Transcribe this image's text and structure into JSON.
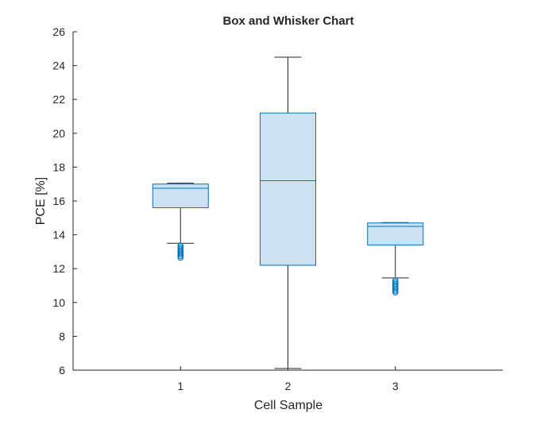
{
  "chart_data": {
    "type": "box",
    "title": "Box and Whisker Chart",
    "xlabel": "Cell Sample",
    "ylabel": "PCE [%]",
    "ylim": [
      6,
      26
    ],
    "yticks": [
      6,
      8,
      10,
      12,
      14,
      16,
      18,
      20,
      22,
      24,
      26
    ],
    "categories": [
      "1",
      "2",
      "3"
    ],
    "grid": false,
    "colors": {
      "box_fill": "#cce2f0",
      "box_edge": "#0072bd",
      "whisker": "#262626",
      "outlier": "#0072bd",
      "axis": "#262626"
    },
    "boxes": [
      {
        "category": "1",
        "whisker_low": 13.5,
        "q1": 15.6,
        "median": 16.75,
        "q3": 17.0,
        "whisker_high": 17.05,
        "outliers": [
          13.35,
          13.25,
          13.15,
          13.05,
          12.95,
          12.85,
          12.75,
          12.65
        ]
      },
      {
        "category": "2",
        "whisker_low": 6.1,
        "q1": 12.2,
        "median": 17.2,
        "q3": 21.2,
        "whisker_high": 24.5,
        "outliers": []
      },
      {
        "category": "3",
        "whisker_low": 11.45,
        "q1": 13.4,
        "median": 14.5,
        "q3": 14.7,
        "whisker_high": 14.72,
        "outliers": [
          11.3,
          11.2,
          11.1,
          11.0,
          10.9,
          10.8,
          10.7,
          10.6
        ]
      }
    ]
  }
}
